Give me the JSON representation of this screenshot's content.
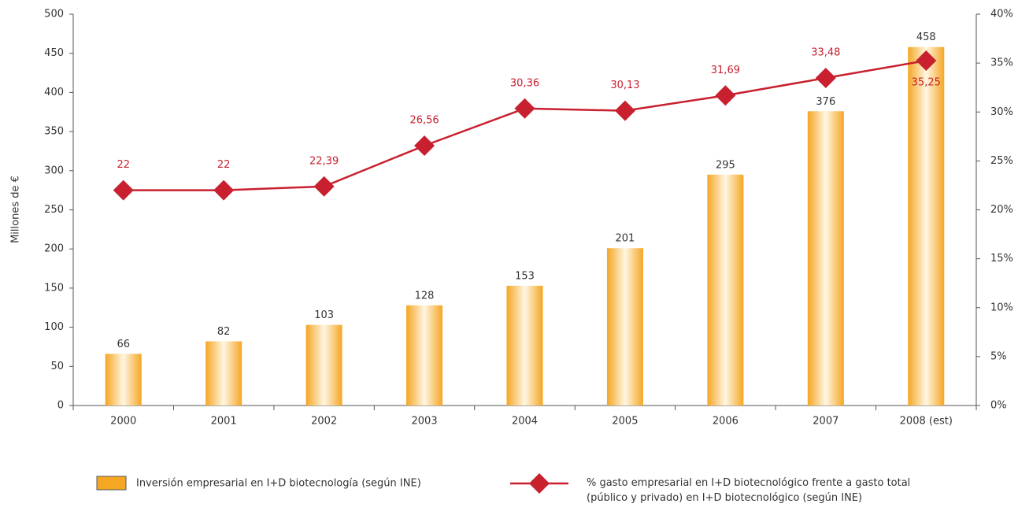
{
  "chart_data": {
    "type": "bar-line",
    "ylabel": "Millones de €",
    "categories": [
      "2000",
      "2001",
      "2002",
      "2003",
      "2004",
      "2005",
      "2006",
      "2007",
      "2008 (est)"
    ],
    "series": [
      {
        "name": "Inversión empresarial en I+D biotecnología (según INE)",
        "type": "bar",
        "color": "#f5a623",
        "values": [
          66,
          82,
          103,
          128,
          153,
          201,
          295,
          376,
          458
        ]
      },
      {
        "name": "% gasto empresarial en I+D biotecnológico frente a gasto total (público y privado) en I+D biotecnológico (según INE)",
        "type": "line",
        "axis": "y2",
        "color": "#c8202f",
        "values": [
          22,
          22,
          22.39,
          26.56,
          30.36,
          30.13,
          31.69,
          33.48,
          35.25
        ],
        "value_labels": [
          "22",
          "22",
          "22,39",
          "26,56",
          "30,36",
          "30,13",
          "31,69",
          "33,48",
          "35,25"
        ]
      }
    ],
    "ylim": [
      0,
      500
    ],
    "yticks": [
      0,
      50,
      100,
      150,
      200,
      250,
      300,
      350,
      400,
      450,
      500
    ],
    "y2lim": [
      0,
      40
    ],
    "y2ticks": [
      {
        "value": 0,
        "label": "0%"
      },
      {
        "value": 5,
        "label": "5%"
      },
      {
        "value": 10,
        "label": "10%"
      },
      {
        "value": 15,
        "label": "15%"
      },
      {
        "value": 20,
        "label": "20%"
      },
      {
        "value": 25,
        "label": "25%"
      },
      {
        "value": 30,
        "label": "30%"
      },
      {
        "value": 35,
        "label": "35%"
      },
      {
        "value": 40,
        "label": "40%"
      }
    ],
    "grid": false,
    "legend": "bottom"
  }
}
